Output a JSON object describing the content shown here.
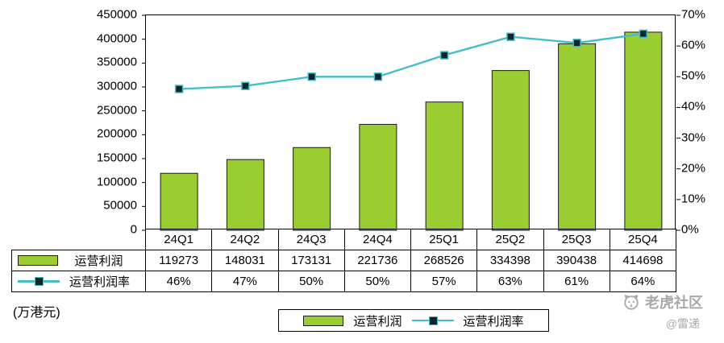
{
  "chart_data": {
    "type": "bar",
    "combo": "bar+line",
    "title": "",
    "categories": [
      "24Q1",
      "24Q2",
      "24Q3",
      "24Q4",
      "25Q1",
      "25Q2",
      "25Q3",
      "25Q4"
    ],
    "series": [
      {
        "name": "运营利润",
        "type": "bar",
        "axis": "left",
        "color": "#9ACD32",
        "values": [
          119273,
          148031,
          173131,
          221736,
          268526,
          334398,
          390438,
          414698
        ]
      },
      {
        "name": "运营利润率",
        "type": "line",
        "axis": "right",
        "color": "#45BFC6",
        "marker_color": "#0D262E",
        "values": [
          46,
          47,
          50,
          50,
          57,
          63,
          61,
          64
        ],
        "value_suffix": "%"
      }
    ],
    "left_axis": {
      "min": 0,
      "max": 450000,
      "step": 50000,
      "tick_labels": [
        "450000",
        "400000",
        "350000",
        "300000",
        "250000",
        "200000",
        "150000",
        "100000",
        "50000",
        "0"
      ]
    },
    "right_axis": {
      "min": 0,
      "max": 70,
      "step": 10,
      "tick_labels": [
        "70%",
        "60%",
        "50%",
        "40%",
        "30%",
        "20%",
        "10%",
        "0%"
      ]
    },
    "grid": false,
    "legend_position": "bottom"
  },
  "unit_label": "(万港元)",
  "legend": {
    "bar_label": "运营利润",
    "line_label": "运营利润率"
  },
  "table": {
    "row_labels": [
      "运营利润",
      "运营利润率"
    ],
    "profit_values": [
      "119273",
      "148031",
      "173131",
      "221736",
      "268526",
      "334398",
      "390438",
      "414698"
    ],
    "margin_values": [
      "46%",
      "47%",
      "50%",
      "50%",
      "57%",
      "63%",
      "61%",
      "64%"
    ]
  },
  "watermark": {
    "brand": "老虎社区",
    "handle": "@雷递"
  }
}
